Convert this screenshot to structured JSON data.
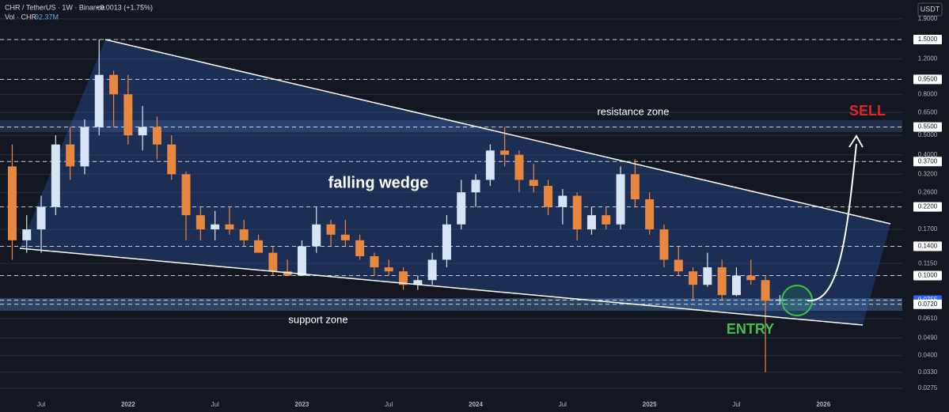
{
  "chart_data": {
    "type": "candlestick",
    "title": "CHR / TetherUS · 1W · Binance",
    "change": "+0.0013 (+1.75%)",
    "volume_label": "Vol · CHR",
    "volume_value": "92.37M",
    "currency": "USDT",
    "annotations": {
      "pattern": "falling wedge",
      "resistance": "resistance zone",
      "support": "support zone",
      "sell": "SELL",
      "entry": "ENTRY"
    },
    "log_scale": true,
    "grid": true,
    "up_color": "#d6e4f5",
    "down_color": "#e8873f",
    "categories": [
      null,
      null,
      "Jul",
      null,
      null,
      null,
      null,
      null,
      "2022",
      null,
      null,
      null,
      null,
      null,
      "Jul",
      null,
      null,
      null,
      null,
      null,
      "2023",
      null,
      null,
      null,
      null,
      null,
      "Jul",
      null,
      null,
      null,
      null,
      null,
      "2024",
      null,
      null,
      null,
      null,
      null,
      "Jul",
      null,
      null,
      null,
      null,
      null,
      "2025",
      null,
      null,
      null,
      null,
      null,
      "Jul",
      null,
      null,
      null,
      null,
      null,
      "2026",
      null,
      null
    ],
    "open": [
      0.35,
      0.15,
      0.17,
      0.22,
      0.45,
      0.35,
      0.55,
      1.0,
      0.8,
      0.5,
      0.55,
      0.45,
      0.32,
      0.2,
      0.17,
      0.18,
      0.17,
      0.15,
      0.13,
      0.105,
      0.1,
      0.14,
      0.18,
      0.16,
      0.15,
      0.125,
      0.11,
      0.105,
      0.09,
      0.095,
      0.12,
      0.18,
      0.26,
      0.3,
      0.42,
      0.4,
      0.3,
      0.28,
      0.22,
      0.25,
      0.17,
      0.2,
      0.18,
      0.32,
      0.24,
      0.17,
      0.12,
      0.105,
      0.09,
      0.11,
      0.08,
      0.1,
      0.095,
      0.075,
      null,
      null,
      null,
      null,
      null
    ],
    "high": [
      0.45,
      0.2,
      0.25,
      0.5,
      0.55,
      0.6,
      1.5,
      1.05,
      1.0,
      0.7,
      0.62,
      0.5,
      0.33,
      0.22,
      0.21,
      0.22,
      0.19,
      0.16,
      0.14,
      0.12,
      0.15,
      0.22,
      0.19,
      0.19,
      0.16,
      0.13,
      0.12,
      0.11,
      0.1,
      0.13,
      0.2,
      0.3,
      0.32,
      0.45,
      0.55,
      0.42,
      0.36,
      0.3,
      0.27,
      0.26,
      0.22,
      0.22,
      0.35,
      0.38,
      0.26,
      0.18,
      0.14,
      0.11,
      0.13,
      0.12,
      0.11,
      0.12,
      0.1,
      0.08,
      null,
      null,
      null,
      null,
      null
    ],
    "low": [
      0.12,
      0.13,
      0.13,
      0.2,
      0.3,
      0.32,
      0.5,
      0.55,
      0.45,
      0.42,
      0.38,
      0.3,
      0.15,
      0.15,
      0.15,
      0.16,
      0.14,
      0.13,
      0.1,
      0.1,
      0.1,
      0.13,
      0.14,
      0.14,
      0.12,
      0.1,
      0.1,
      0.085,
      0.085,
      0.09,
      0.11,
      0.17,
      0.22,
      0.28,
      0.35,
      0.26,
      0.26,
      0.2,
      0.18,
      0.15,
      0.16,
      0.17,
      0.17,
      0.22,
      0.16,
      0.11,
      0.1,
      0.075,
      0.088,
      0.075,
      0.079,
      0.09,
      0.033,
      0.072,
      null,
      null,
      null,
      null,
      null
    ],
    "close": [
      0.15,
      0.17,
      0.22,
      0.45,
      0.35,
      0.55,
      1.0,
      0.8,
      0.5,
      0.55,
      0.45,
      0.32,
      0.2,
      0.17,
      0.18,
      0.17,
      0.15,
      0.13,
      0.105,
      0.1,
      0.14,
      0.18,
      0.16,
      0.15,
      0.125,
      0.11,
      0.105,
      0.09,
      0.095,
      0.12,
      0.18,
      0.26,
      0.3,
      0.42,
      0.4,
      0.3,
      0.28,
      0.22,
      0.25,
      0.17,
      0.2,
      0.18,
      0.32,
      0.24,
      0.17,
      0.12,
      0.105,
      0.09,
      0.11,
      0.08,
      0.1,
      0.095,
      0.075,
      0.076,
      null,
      null,
      null,
      null,
      null
    ],
    "ylim": [
      0.0242,
      2.36
    ],
    "yticks": [
      {
        "value": 1.9,
        "label": "1.9000"
      },
      {
        "value": 1.5,
        "label": "1.5000"
      },
      {
        "value": 1.2,
        "label": "1.2000"
      },
      {
        "value": 0.95,
        "label": "0.9500"
      },
      {
        "value": 0.8,
        "label": "0.8000"
      },
      {
        "value": 0.65,
        "label": "0.6500"
      },
      {
        "value": 0.55,
        "label": "0.5500"
      },
      {
        "value": 0.5,
        "label": "0.5000"
      },
      {
        "value": 0.4,
        "label": "0.4000"
      },
      {
        "value": 0.37,
        "label": "0.3700"
      },
      {
        "value": 0.32,
        "label": "0.3200"
      },
      {
        "value": 0.26,
        "label": "0.2600"
      },
      {
        "value": 0.22,
        "label": "0.2200"
      },
      {
        "value": 0.17,
        "label": "0.1700"
      },
      {
        "value": 0.14,
        "label": "0.1400"
      },
      {
        "value": 0.115,
        "label": "0.1150"
      },
      {
        "value": 0.1,
        "label": "0.1000"
      },
      {
        "value": 0.0755,
        "label": "0.0755"
      },
      {
        "value": 0.072,
        "label": "0.0720"
      },
      {
        "value": 0.061,
        "label": "0.0610"
      },
      {
        "value": 0.049,
        "label": "0.0490"
      },
      {
        "value": 0.04,
        "label": "0.0400"
      },
      {
        "value": 0.033,
        "label": "0.0330"
      },
      {
        "value": 0.0275,
        "label": "0.0275"
      }
    ],
    "level_lines": [
      1.5,
      0.95,
      0.55,
      0.37,
      0.22,
      0.14,
      0.1,
      0.0755,
      0.072
    ]
  }
}
